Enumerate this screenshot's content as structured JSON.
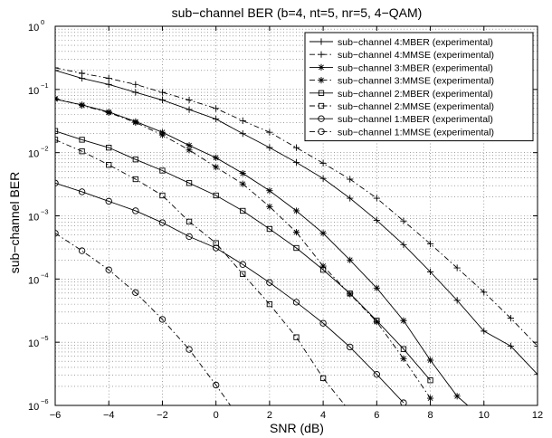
{
  "chart_data": {
    "type": "line",
    "title": "sub−channel BER (b=4, nt=5, nr=5, 4−QAM)",
    "xlabel": "SNR (dB)",
    "ylabel": "sub−channel BER",
    "xlim": [
      -6,
      12
    ],
    "ylim": [
      1e-06,
      1
    ],
    "yscale": "log",
    "grid": true,
    "legend_position": "top-right",
    "x_ticks": [
      "−6",
      "−4",
      "−2",
      "0",
      "2",
      "4",
      "6",
      "8",
      "10",
      "12"
    ],
    "x_tick_values": [
      -6,
      -4,
      -2,
      0,
      2,
      4,
      6,
      8,
      10,
      12
    ],
    "y_ticks": [
      {
        "base": "10",
        "exp": "0",
        "value": 1
      },
      {
        "base": "10",
        "exp": "−1",
        "value": 0.1
      },
      {
        "base": "10",
        "exp": "−2",
        "value": 0.01
      },
      {
        "base": "10",
        "exp": "−3",
        "value": 0.001
      },
      {
        "base": "10",
        "exp": "−4",
        "value": 0.0001
      },
      {
        "base": "10",
        "exp": "−5",
        "value": 1e-05
      },
      {
        "base": "10",
        "exp": "−6",
        "value": 1e-06
      }
    ],
    "series": [
      {
        "name": "sub−channel 4:MBER (experimental)",
        "marker": "plus",
        "line": "solid",
        "x": [
          -6,
          -5,
          -4,
          -3,
          -2,
          -1,
          0,
          1,
          2,
          3,
          4,
          5,
          6,
          7,
          8,
          9,
          10,
          11,
          12
        ],
        "y": [
          0.2,
          0.15,
          0.12,
          0.09,
          0.068,
          0.048,
          0.034,
          0.02,
          0.012,
          0.007,
          0.0039,
          0.0019,
          0.00085,
          0.00035,
          0.00013,
          4.6e-05,
          1.5e-05,
          8.7e-06,
          3.1e-06
        ]
      },
      {
        "name": "sub−channel 4:MMSE (experimental)",
        "marker": "plus",
        "line": "dashdot",
        "x": [
          -6,
          -5,
          -4,
          -3,
          -2,
          -1,
          0,
          1,
          2,
          3,
          4,
          5,
          6,
          7,
          8,
          9,
          10,
          11,
          12
        ],
        "y": [
          0.22,
          0.18,
          0.15,
          0.12,
          0.09,
          0.068,
          0.05,
          0.032,
          0.021,
          0.012,
          0.0068,
          0.0038,
          0.0019,
          0.00083,
          0.00036,
          0.00015,
          6.2e-05,
          2.4e-05,
          8.7e-06
        ]
      },
      {
        "name": "sub−channel 3:MBER (experimental)",
        "marker": "star",
        "line": "solid",
        "x": [
          -6,
          -5,
          -4,
          -3,
          -2,
          -1,
          0,
          1,
          2,
          3,
          4,
          5,
          6,
          7,
          8,
          9,
          10
        ],
        "y": [
          0.07,
          0.057,
          0.044,
          0.031,
          0.021,
          0.013,
          0.0083,
          0.0047,
          0.0025,
          0.0012,
          0.00053,
          0.0002,
          7.2e-05,
          2.2e-05,
          5.2e-06,
          1.4e-06,
          6e-07
        ]
      },
      {
        "name": "sub−channel 3:MMSE (experimental)",
        "marker": "star",
        "line": "dashdot",
        "x": [
          -6,
          -5,
          -4,
          -3,
          -2,
          -1,
          0,
          1,
          2,
          3,
          4,
          5,
          6,
          7,
          8
        ],
        "y": [
          0.072,
          0.056,
          0.043,
          0.03,
          0.019,
          0.011,
          0.0059,
          0.0032,
          0.0014,
          0.00055,
          0.00016,
          5.8e-05,
          2.1e-05,
          5.5e-06,
          1.3e-06
        ]
      },
      {
        "name": "sub−channel 2:MBER (experimental)",
        "marker": "square",
        "line": "solid",
        "x": [
          -6,
          -5,
          -4,
          -3,
          -2,
          -1,
          0,
          1,
          2,
          3,
          4,
          5,
          6,
          7,
          8
        ],
        "y": [
          0.022,
          0.016,
          0.012,
          0.0078,
          0.0052,
          0.0033,
          0.0021,
          0.0012,
          0.00062,
          0.00031,
          0.00014,
          5.9e-05,
          2.2e-05,
          7.8e-06,
          2.5e-06
        ]
      },
      {
        "name": "sub−channel 2:MMSE (experimental)",
        "marker": "square",
        "line": "dashdot",
        "x": [
          -6,
          -5,
          -4,
          -3,
          -2,
          -1,
          0,
          1,
          2,
          3,
          4,
          5
        ],
        "y": [
          0.016,
          0.0105,
          0.0064,
          0.0038,
          0.0021,
          0.00081,
          0.00037,
          0.00012,
          4e-05,
          1.2e-05,
          2.7e-06,
          8e-07
        ]
      },
      {
        "name": "sub−channel 1:MBER (experimental)",
        "marker": "circle",
        "line": "solid",
        "x": [
          -6,
          -5,
          -4,
          -3,
          -2,
          -1,
          0,
          1,
          2,
          3,
          4,
          5,
          6,
          7
        ],
        "y": [
          0.0033,
          0.0024,
          0.0017,
          0.0012,
          0.00078,
          0.00047,
          0.00031,
          0.00017,
          8.8e-05,
          4.3e-05,
          2e-05,
          8.4e-06,
          3.1e-06,
          1.1e-06
        ]
      },
      {
        "name": "sub−channel 1:MMSE (experimental)",
        "marker": "circle",
        "line": "dashdot",
        "x": [
          -6,
          -5,
          -4,
          -3,
          -2,
          -1,
          0,
          0.8
        ],
        "y": [
          0.00053,
          0.00028,
          0.00014,
          6.1e-05,
          2.3e-05,
          7.7e-06,
          2.1e-06,
          7e-07
        ]
      }
    ]
  }
}
